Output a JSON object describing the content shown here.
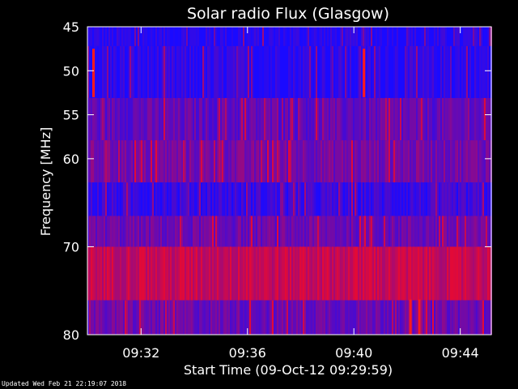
{
  "chart_data": {
    "type": "heatmap",
    "title": "Solar radio Flux (Glasgow)",
    "xlabel": "Start Time (09-Oct-12 09:29:59)",
    "ylabel": "Frequency [MHz]",
    "x_ticks": [
      "09:32",
      "09:36",
      "09:40",
      "09:44"
    ],
    "y_ticks": [
      "45",
      "50",
      "55",
      "60",
      "70",
      "80"
    ],
    "ylim": [
      45,
      80
    ],
    "y_inverted": true,
    "xlim": [
      "09:29:59",
      "09:45:10"
    ],
    "bands": [
      {
        "from": 45,
        "to": 47.2,
        "level": 0.05
      },
      {
        "from": 47.2,
        "to": 53.1,
        "level": 0.08
      },
      {
        "from": 53.1,
        "to": 57.9,
        "level": 0.35
      },
      {
        "from": 57.9,
        "to": 62.7,
        "level": 0.45
      },
      {
        "from": 62.7,
        "to": 66.5,
        "level": 0.15
      },
      {
        "from": 66.5,
        "to": 70.0,
        "level": 0.4
      },
      {
        "from": 70.0,
        "to": 76.1,
        "level": 0.85
      },
      {
        "from": 76.1,
        "to": 80,
        "level": 0.4
      }
    ],
    "bursts": [
      {
        "time": "09:30:10",
        "from": 47.5,
        "to": 53.0
      },
      {
        "time": "09:40:20",
        "from": 47.5,
        "to": 53.0
      },
      {
        "time": "09:42:05",
        "from": 76.0,
        "to": 80.0
      },
      {
        "time": "09:42:25",
        "from": 76.0,
        "to": 80.0
      }
    ],
    "colors": {
      "background": "#000000",
      "low": "#1a1aff",
      "high": "#ff1a1a",
      "axis": "#ffffff"
    },
    "footer": "Updated Wed Feb 21 22:19:07 2018"
  }
}
